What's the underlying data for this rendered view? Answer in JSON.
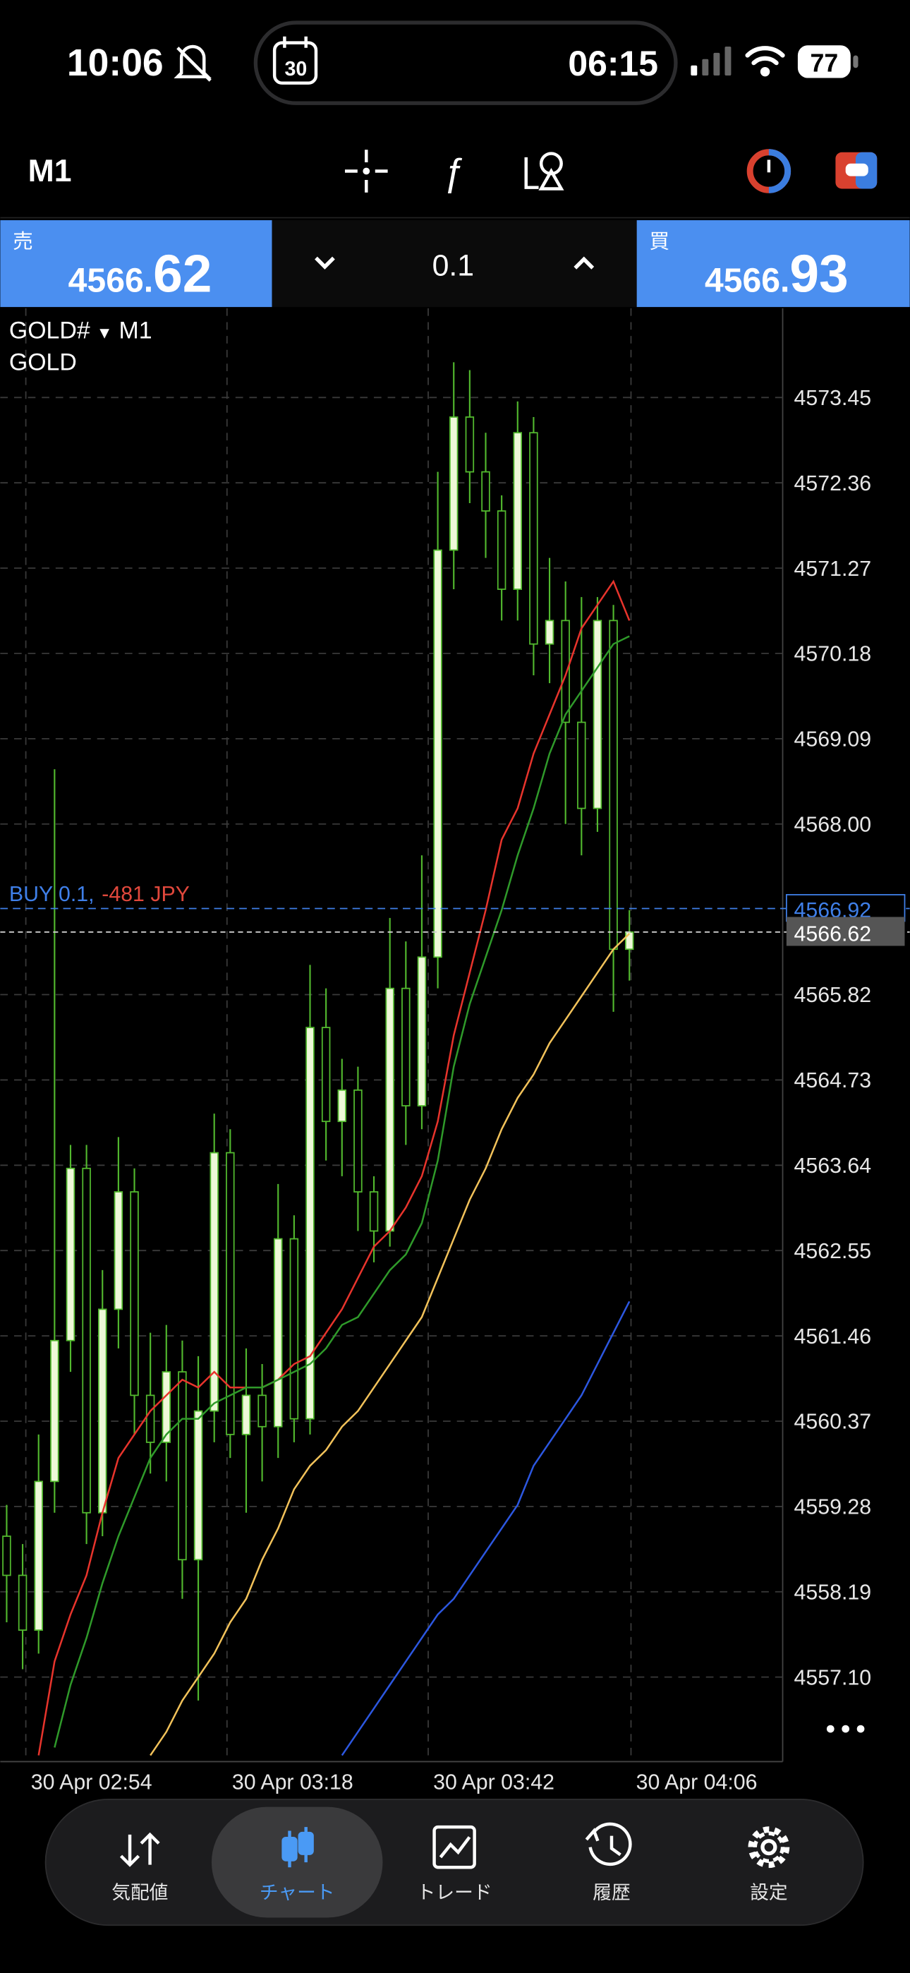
{
  "status_bar": {
    "time": "10:06",
    "island_date": "30",
    "island_time": "06:15",
    "battery": "77"
  },
  "toolbar": {
    "timeframe": "M1"
  },
  "trade_panel": {
    "sell_label": "売",
    "sell_price_main": "4566.",
    "sell_price_big": "62",
    "volume": "0.1",
    "buy_label": "買",
    "buy_price_main": "4566.",
    "buy_price_big": "93"
  },
  "chart_data": {
    "type": "candlestick",
    "symbol": "GOLD#",
    "description": "GOLD",
    "up_color": "#eef8d8",
    "down_color": "#000000",
    "wick_color": "#52b82e",
    "grid": true,
    "open": [
      4558.9,
      4558.4,
      4557.7,
      4559.6,
      4561.4,
      4563.6,
      4559.2,
      4561.8,
      4563.3,
      4560.7,
      4560.1,
      4561.0,
      4558.6,
      4560.5,
      4563.8,
      4560.2,
      4560.7,
      4560.3,
      4562.7,
      4560.4,
      4565.4,
      4564.2,
      4564.6,
      4563.3,
      4562.8,
      4565.9,
      4564.4,
      4566.3,
      4571.5,
      4573.2,
      4572.5,
      4572.0,
      4571.0,
      4573.0,
      4570.3,
      4570.6,
      4569.3,
      4568.2,
      4570.6,
      4566.4
    ],
    "high": [
      4559.3,
      4558.8,
      4560.2,
      4568.7,
      4563.9,
      4563.9,
      4562.3,
      4564.0,
      4563.6,
      4561.5,
      4561.6,
      4561.4,
      4561.2,
      4564.3,
      4564.1,
      4561.3,
      4561.1,
      4563.4,
      4563.0,
      4566.2,
      4565.9,
      4565.0,
      4564.9,
      4563.5,
      4566.8,
      4566.5,
      4567.6,
      4572.5,
      4573.9,
      4573.8,
      4573.0,
      4572.2,
      4573.4,
      4573.2,
      4571.4,
      4571.1,
      4570.9,
      4570.9,
      4570.8,
      4566.9
    ],
    "low": [
      4557.8,
      4557.2,
      4557.4,
      4559.2,
      4561.0,
      4558.8,
      4558.9,
      4561.3,
      4560.2,
      4559.7,
      4559.6,
      4558.1,
      4556.8,
      4560.1,
      4559.9,
      4559.2,
      4559.6,
      4559.9,
      4560.1,
      4560.2,
      4563.7,
      4563.5,
      4562.8,
      4562.4,
      4562.6,
      4563.9,
      4564.1,
      4565.9,
      4571.0,
      4572.1,
      4571.4,
      4570.6,
      4570.6,
      4569.9,
      4569.8,
      4568.0,
      4567.6,
      4567.9,
      4565.6,
      4566.0
    ],
    "close": [
      4558.4,
      4557.7,
      4559.6,
      4561.4,
      4563.6,
      4559.2,
      4561.8,
      4563.3,
      4560.7,
      4560.1,
      4561.0,
      4558.6,
      4560.5,
      4563.8,
      4560.2,
      4560.7,
      4560.3,
      4562.7,
      4560.4,
      4565.4,
      4564.2,
      4564.6,
      4563.3,
      4562.8,
      4565.9,
      4564.4,
      4566.3,
      4571.5,
      4573.2,
      4572.5,
      4572.0,
      4571.0,
      4573.0,
      4570.3,
      4570.6,
      4569.3,
      4568.2,
      4570.6,
      4566.4,
      4566.62
    ],
    "series": [
      {
        "color": "#e8342c",
        "values": [
          null,
          null,
          4556.1,
          4557.3,
          4557.9,
          4558.4,
          4559.2,
          4559.9,
          4560.2,
          4560.5,
          4560.7,
          4560.9,
          4560.8,
          4561.0,
          4560.8,
          4560.8,
          4560.8,
          4560.9,
          4561.1,
          4561.2,
          4561.5,
          4561.8,
          4562.2,
          4562.6,
          4562.8,
          4563.1,
          4563.5,
          4564.2,
          4565.3,
          4566.1,
          4566.9,
          4567.8,
          4568.2,
          4568.9,
          4569.4,
          4569.9,
          4570.5,
          4570.8,
          4571.1,
          4570.6
        ]
      },
      {
        "color": "#2f9a2a",
        "values": [
          null,
          null,
          null,
          4556.2,
          4557.0,
          4557.6,
          4558.3,
          4558.9,
          4559.4,
          4559.9,
          4560.2,
          4560.4,
          4560.4,
          4560.6,
          4560.7,
          4560.8,
          4560.8,
          4560.9,
          4561.0,
          4561.1,
          4561.3,
          4561.6,
          4561.7,
          4562.0,
          4562.3,
          4562.5,
          4562.9,
          4563.7,
          4564.9,
          4565.7,
          4566.3,
          4566.9,
          4567.6,
          4568.2,
          4568.9,
          4569.4,
          4569.7,
          4570.0,
          4570.3,
          4570.4
        ]
      },
      {
        "color": "#f2c25a",
        "values": [
          null,
          null,
          null,
          null,
          null,
          null,
          null,
          null,
          null,
          4556.1,
          4556.4,
          4556.8,
          4557.1,
          4557.4,
          4557.8,
          4558.1,
          4558.6,
          4559.0,
          4559.5,
          4559.8,
          4560.0,
          4560.3,
          4560.5,
          4560.8,
          4561.1,
          4561.4,
          4561.7,
          4562.2,
          4562.7,
          4563.2,
          4563.6,
          4564.1,
          4564.5,
          4564.8,
          4565.2,
          4565.5,
          4565.8,
          4566.1,
          4566.4,
          4566.6
        ]
      },
      {
        "color": "#2c57e0",
        "values": [
          null,
          null,
          null,
          null,
          null,
          null,
          null,
          null,
          null,
          null,
          null,
          null,
          null,
          null,
          null,
          null,
          null,
          null,
          null,
          null,
          null,
          4556.1,
          4556.4,
          4556.7,
          4557.0,
          4557.3,
          4557.6,
          4557.9,
          4558.1,
          4558.4,
          4558.7,
          4559.0,
          4559.3,
          4559.8,
          4560.1,
          4560.4,
          4560.7,
          4561.1,
          4561.5,
          4561.9
        ]
      }
    ],
    "ylim": [
      4556.02,
      4574.59
    ],
    "yticks": [
      4573.45,
      4572.36,
      4571.27,
      4570.18,
      4569.09,
      {
        "value": 4568,
        "label": "4568.00"
      },
      4565.82,
      {
        "value": 4564.73,
        "label": "4564.73"
      },
      {
        "value": 4563.64,
        "label": "4563.64"
      },
      {
        "value": 4562.55,
        "label": "4562.55"
      },
      {
        "value": 4561.46,
        "label": "4561.46"
      },
      {
        "value": 4560.37,
        "label": "4560.37"
      },
      {
        "value": 4559.28,
        "label": "4559.28"
      },
      {
        "value": 4558.19,
        "label": "4558.19"
      },
      {
        "value": 4557.1,
        "label": "4557.10"
      }
    ],
    "xlim": [
      -0.4,
      48.6
    ],
    "xticks": [
      {
        "value": 1.2,
        "label": "30 Apr 02:54"
      },
      {
        "value": 13.8,
        "label": "30 Apr 03:18"
      },
      {
        "value": 26.4,
        "label": "30 Apr 03:42"
      },
      {
        "value": 39.1,
        "label": "30 Apr 04:06"
      }
    ],
    "position": {
      "label": "BUY 0.1,",
      "profit": "-481 JPY",
      "price": 4566.92,
      "color": "#3f7fe8",
      "profit_color": "#e0483c"
    },
    "bid": 4566.62
  },
  "nav": {
    "items": [
      {
        "label": "気配値"
      },
      {
        "label": "チャート"
      },
      {
        "label": "トレード"
      },
      {
        "label": "履歴"
      },
      {
        "label": "設定"
      }
    ],
    "active_color": "#4a9af5"
  }
}
